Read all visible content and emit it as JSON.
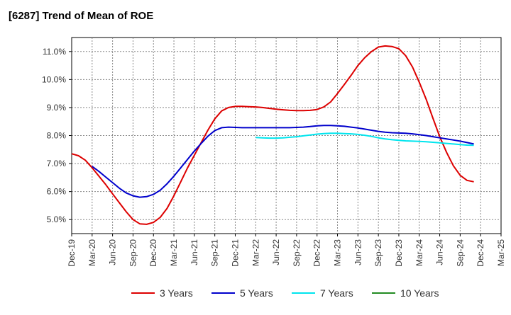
{
  "chart_data": {
    "type": "line",
    "title": "[6287]  Trend of Mean of ROE",
    "xlabel": "",
    "ylabel": "",
    "x_ticks": [
      "Dec-19",
      "Mar-20",
      "Jun-20",
      "Sep-20",
      "Dec-20",
      "Mar-21",
      "Jun-21",
      "Sep-21",
      "Dec-21",
      "Mar-22",
      "Jun-22",
      "Sep-22",
      "Dec-22",
      "Mar-23",
      "Jun-23",
      "Sep-23",
      "Dec-23",
      "Mar-24",
      "Jun-24",
      "Sep-24",
      "Dec-24",
      "Mar-25"
    ],
    "y_ticks": [
      "5.0%",
      "6.0%",
      "7.0%",
      "8.0%",
      "9.0%",
      "10.0%",
      "11.0%"
    ],
    "y_tick_values": [
      5.0,
      6.0,
      7.0,
      8.0,
      9.0,
      10.0,
      11.0
    ],
    "ylim": [
      4.5,
      11.5
    ],
    "grid": true,
    "legend_position": "bottom",
    "series": [
      {
        "name": "3 Years",
        "color": "#dd0000",
        "values": [
          [
            0,
            7.35
          ],
          [
            1,
            7.28
          ],
          [
            2,
            7.12
          ],
          [
            3,
            6.85
          ],
          [
            4,
            6.55
          ],
          [
            5,
            6.25
          ],
          [
            6,
            5.92
          ],
          [
            7,
            5.6
          ],
          [
            8,
            5.28
          ],
          [
            9,
            5.0
          ],
          [
            10,
            4.85
          ],
          [
            11,
            4.83
          ],
          [
            12,
            4.9
          ],
          [
            13,
            5.08
          ],
          [
            14,
            5.4
          ],
          [
            15,
            5.85
          ],
          [
            16,
            6.35
          ],
          [
            17,
            6.85
          ],
          [
            18,
            7.3
          ],
          [
            19,
            7.75
          ],
          [
            20,
            8.2
          ],
          [
            21,
            8.6
          ],
          [
            22,
            8.88
          ],
          [
            23,
            9.0
          ],
          [
            24,
            9.04
          ],
          [
            25,
            9.04
          ],
          [
            26,
            9.03
          ],
          [
            27,
            9.02
          ],
          [
            28,
            9.0
          ],
          [
            29,
            8.97
          ],
          [
            30,
            8.94
          ],
          [
            31,
            8.92
          ],
          [
            32,
            8.9
          ],
          [
            33,
            8.89
          ],
          [
            34,
            8.89
          ],
          [
            35,
            8.9
          ],
          [
            36,
            8.93
          ],
          [
            37,
            9.02
          ],
          [
            38,
            9.2
          ],
          [
            39,
            9.5
          ],
          [
            40,
            9.82
          ],
          [
            41,
            10.15
          ],
          [
            42,
            10.5
          ],
          [
            43,
            10.78
          ],
          [
            44,
            11.0
          ],
          [
            45,
            11.16
          ],
          [
            46,
            11.2
          ],
          [
            47,
            11.18
          ],
          [
            48,
            11.1
          ],
          [
            49,
            10.85
          ],
          [
            50,
            10.45
          ],
          [
            51,
            9.9
          ],
          [
            52,
            9.3
          ],
          [
            53,
            8.62
          ],
          [
            54,
            7.96
          ],
          [
            55,
            7.4
          ],
          [
            56,
            6.92
          ],
          [
            57,
            6.58
          ],
          [
            58,
            6.4
          ],
          [
            59,
            6.35
          ]
        ]
      },
      {
        "name": "5 Years",
        "color": "#0000cc",
        "values": [
          [
            3,
            6.9
          ],
          [
            4,
            6.72
          ],
          [
            5,
            6.52
          ],
          [
            6,
            6.32
          ],
          [
            7,
            6.12
          ],
          [
            8,
            5.95
          ],
          [
            9,
            5.85
          ],
          [
            10,
            5.8
          ],
          [
            11,
            5.82
          ],
          [
            12,
            5.9
          ],
          [
            13,
            6.05
          ],
          [
            14,
            6.28
          ],
          [
            15,
            6.55
          ],
          [
            16,
            6.85
          ],
          [
            17,
            7.15
          ],
          [
            18,
            7.45
          ],
          [
            19,
            7.72
          ],
          [
            20,
            7.98
          ],
          [
            21,
            8.18
          ],
          [
            22,
            8.28
          ],
          [
            23,
            8.3
          ],
          [
            24,
            8.29
          ],
          [
            25,
            8.28
          ],
          [
            26,
            8.28
          ],
          [
            27,
            8.28
          ],
          [
            28,
            8.28
          ],
          [
            29,
            8.28
          ],
          [
            30,
            8.28
          ],
          [
            31,
            8.28
          ],
          [
            32,
            8.28
          ],
          [
            33,
            8.29
          ],
          [
            34,
            8.3
          ],
          [
            35,
            8.32
          ],
          [
            36,
            8.35
          ],
          [
            37,
            8.36
          ],
          [
            38,
            8.36
          ],
          [
            39,
            8.35
          ],
          [
            40,
            8.33
          ],
          [
            41,
            8.3
          ],
          [
            42,
            8.27
          ],
          [
            43,
            8.23
          ],
          [
            44,
            8.19
          ],
          [
            45,
            8.15
          ],
          [
            46,
            8.12
          ],
          [
            47,
            8.1
          ],
          [
            48,
            8.09
          ],
          [
            49,
            8.08
          ],
          [
            50,
            8.06
          ],
          [
            51,
            8.03
          ],
          [
            52,
            8.0
          ],
          [
            53,
            7.96
          ],
          [
            54,
            7.92
          ],
          [
            55,
            7.88
          ],
          [
            56,
            7.84
          ],
          [
            57,
            7.8
          ],
          [
            58,
            7.75
          ],
          [
            59,
            7.7
          ]
        ]
      },
      {
        "name": "7 Years",
        "color": "#00e5ee",
        "values": [
          [
            27,
            7.93
          ],
          [
            28,
            7.92
          ],
          [
            29,
            7.91
          ],
          [
            30,
            7.91
          ],
          [
            31,
            7.92
          ],
          [
            32,
            7.94
          ],
          [
            33,
            7.96
          ],
          [
            34,
            7.99
          ],
          [
            35,
            8.02
          ],
          [
            36,
            8.05
          ],
          [
            37,
            8.07
          ],
          [
            38,
            8.08
          ],
          [
            39,
            8.08
          ],
          [
            40,
            8.07
          ],
          [
            41,
            8.06
          ],
          [
            42,
            8.04
          ],
          [
            43,
            8.01
          ],
          [
            44,
            7.97
          ],
          [
            45,
            7.92
          ],
          [
            46,
            7.88
          ],
          [
            47,
            7.85
          ],
          [
            48,
            7.83
          ],
          [
            49,
            7.81
          ],
          [
            50,
            7.8
          ],
          [
            51,
            7.79
          ],
          [
            52,
            7.78
          ],
          [
            53,
            7.76
          ],
          [
            54,
            7.74
          ],
          [
            55,
            7.72
          ],
          [
            56,
            7.7
          ],
          [
            57,
            7.68
          ],
          [
            58,
            7.66
          ],
          [
            59,
            7.65
          ]
        ]
      },
      {
        "name": "10 Years",
        "color": "#228b22",
        "values": []
      }
    ]
  }
}
